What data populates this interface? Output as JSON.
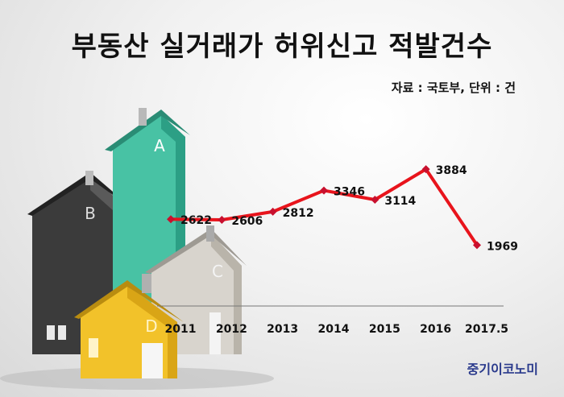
{
  "title": "부동산 실거래가 허위신고 적발건수",
  "source": "자료 : 국토부, 단위 : 건",
  "brand": "중기이코노미",
  "house_letters": [
    "A",
    "B",
    "C",
    "D"
  ],
  "colors": {
    "line": "#e8141c",
    "marker": "#c8102e",
    "axis": "#777777"
  },
  "chart_data": {
    "type": "line",
    "categories": [
      "2011",
      "2012",
      "2013",
      "2014",
      "2015",
      "2016",
      "2017.5"
    ],
    "series": [
      {
        "values": [
          2622,
          2606,
          2812,
          3346,
          3114,
          3884,
          1969
        ]
      }
    ],
    "title": "부동산 실거래가 허위신고 적발건수",
    "xlabel": "",
    "ylabel": "",
    "ylim": [
      0,
      4500
    ],
    "grid": false,
    "legend": "none",
    "data_labels": true
  }
}
